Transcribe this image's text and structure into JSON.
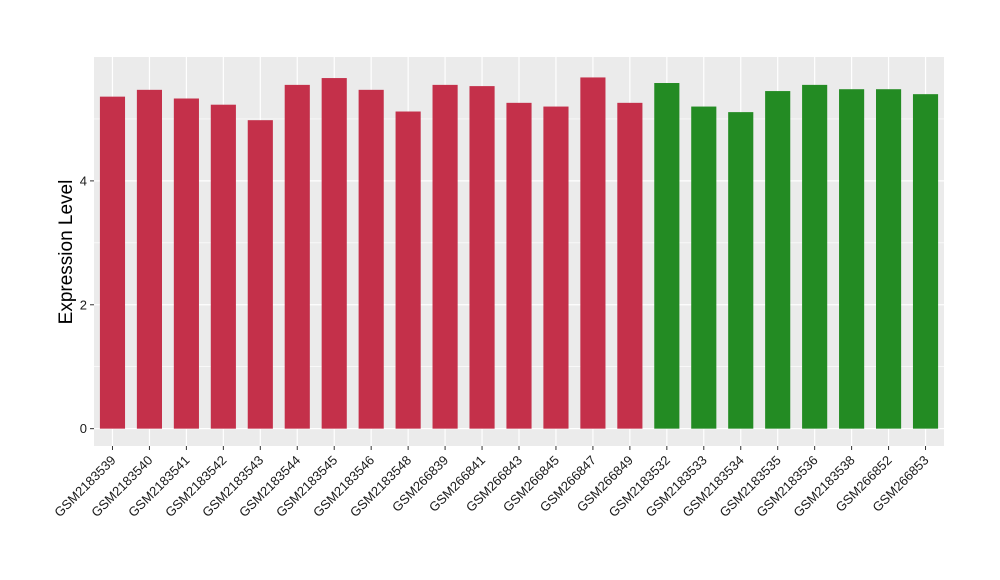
{
  "chart_data": {
    "type": "bar",
    "title": "",
    "xlabel": "",
    "ylabel": "Expression Level",
    "ylim": [
      -0.28,
      6.0
    ],
    "yticks": [
      0,
      2,
      4
    ],
    "grid": true,
    "legend": "none",
    "colors": {
      "group1": "#c4304a",
      "group2": "#238b23",
      "panel_bg": "#ebebeb",
      "grid": "#ffffff"
    },
    "categories": [
      "GSM2183539",
      "GSM2183540",
      "GSM2183541",
      "GSM2183542",
      "GSM2183543",
      "GSM2183544",
      "GSM2183545",
      "GSM2183546",
      "GSM2183548",
      "GSM266839",
      "GSM266841",
      "GSM266843",
      "GSM266845",
      "GSM266847",
      "GSM266849",
      "GSM2183532",
      "GSM2183533",
      "GSM2183534",
      "GSM2183535",
      "GSM2183536",
      "GSM2183538",
      "GSM266852",
      "GSM266853"
    ],
    "values": [
      5.36,
      5.47,
      5.33,
      5.23,
      4.98,
      5.55,
      5.66,
      5.47,
      5.12,
      5.55,
      5.53,
      5.26,
      5.2,
      5.67,
      5.26,
      5.58,
      5.2,
      5.11,
      5.45,
      5.55,
      5.48,
      5.48,
      5.4
    ],
    "groups": [
      1,
      1,
      1,
      1,
      1,
      1,
      1,
      1,
      1,
      1,
      1,
      1,
      1,
      1,
      1,
      2,
      2,
      2,
      2,
      2,
      2,
      2,
      2
    ]
  }
}
